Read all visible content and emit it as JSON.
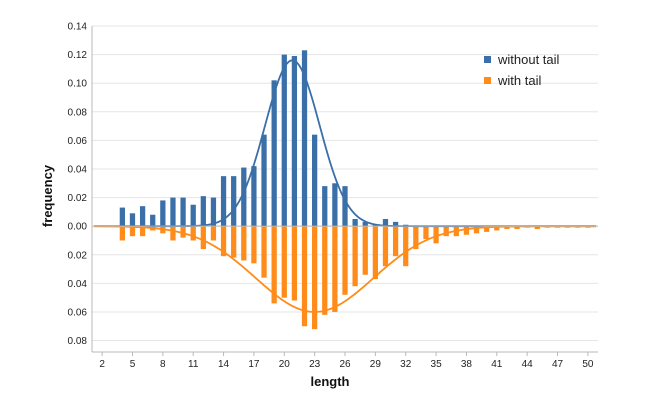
{
  "chart_data": {
    "type": "bar",
    "xlabel": "length",
    "ylabel": "frequency",
    "x": [
      4,
      5,
      6,
      7,
      8,
      9,
      10,
      11,
      12,
      13,
      14,
      15,
      16,
      17,
      18,
      19,
      20,
      21,
      22,
      23,
      24,
      25,
      26,
      27,
      28,
      29,
      30,
      31,
      32,
      33,
      34,
      35,
      36,
      37,
      38,
      39,
      40,
      41,
      42,
      43,
      44,
      45,
      46,
      47,
      48,
      49,
      50
    ],
    "x_ticks": [
      2,
      5,
      8,
      11,
      14,
      17,
      20,
      23,
      26,
      29,
      32,
      35,
      38,
      41,
      44,
      47,
      50
    ],
    "xlim": [
      1,
      51
    ],
    "y_ticks_upper": [
      "0.14",
      "0.12",
      "0.10",
      "0.08",
      "0.06",
      "0.04",
      "0.02",
      "0.00"
    ],
    "y_ticks_lower": [
      "0.02",
      "0.04",
      "0.06",
      "0.08"
    ],
    "ylim": [
      -0.088,
      0.14
    ],
    "legend_position": "top-right",
    "grid": true,
    "series": [
      {
        "name": "without tail",
        "color": "#3a6fa8",
        "values": [
          0.013,
          0.009,
          0.014,
          0.008,
          0.018,
          0.02,
          0.02,
          0.015,
          0.021,
          0.02,
          0.035,
          0.035,
          0.041,
          0.042,
          0.064,
          0.102,
          0.12,
          0.119,
          0.123,
          0.064,
          0.028,
          0.03,
          0.028,
          0.005,
          0.003,
          0.001,
          0.005,
          0.003,
          0.001,
          0.0,
          0,
          0,
          0,
          0,
          0,
          0,
          0,
          0,
          0,
          0,
          0,
          0,
          0,
          0,
          0,
          0,
          0
        ]
      },
      {
        "name": "with tail",
        "color": "#ff8c1a",
        "values": [
          -0.01,
          -0.007,
          -0.007,
          -0.003,
          -0.005,
          -0.01,
          -0.008,
          -0.01,
          -0.016,
          -0.01,
          -0.021,
          -0.022,
          -0.024,
          -0.026,
          -0.036,
          -0.054,
          -0.05,
          -0.052,
          -0.07,
          -0.072,
          -0.062,
          -0.06,
          -0.048,
          -0.042,
          -0.034,
          -0.037,
          -0.028,
          -0.021,
          -0.028,
          -0.016,
          -0.009,
          -0.012,
          -0.007,
          -0.007,
          -0.006,
          -0.005,
          -0.004,
          -0.003,
          -0.002,
          -0.002,
          -0.001,
          -0.002,
          -0.001,
          -0.001,
          -0.001,
          -0.001,
          -0.001
        ]
      }
    ],
    "fit_curves": [
      {
        "series": "without tail",
        "color": "#3a6fa8",
        "type": "gaussian",
        "amplitude": 0.116,
        "mean": 20.8,
        "sigma": 2.7,
        "baseline": 0.0
      },
      {
        "series": "with tail",
        "color": "#ff8c1a",
        "type": "gaussian",
        "amplitude": -0.06,
        "mean": 23.0,
        "sigma": 5.8,
        "baseline": 0.0
      }
    ]
  }
}
